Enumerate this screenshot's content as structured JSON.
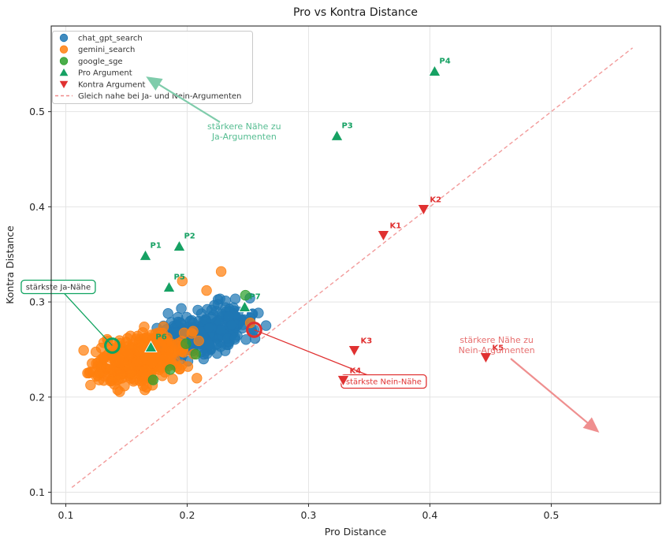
{
  "chart_data": {
    "type": "scatter",
    "title": "Pro vs Kontra Distance",
    "xlabel": "Pro Distance",
    "ylabel": "Kontra Distance",
    "xlim": [
      0.088,
      0.59
    ],
    "ylim": [
      0.088,
      0.59
    ],
    "xticks": [
      0.1,
      0.2,
      0.3,
      0.4,
      0.5
    ],
    "yticks": [
      0.1,
      0.2,
      0.3,
      0.4,
      0.5
    ],
    "grid": true,
    "grid_color": "#e4e4e4",
    "spine_color": "#2a2a2a",
    "identity_line": {
      "label": "Gleich nahe bei Ja- und Nein-Argumenten",
      "from": [
        0.105,
        0.105
      ],
      "to": [
        0.567,
        0.567
      ],
      "style": "dashed",
      "color": "#f29a9a"
    },
    "series": [
      {
        "name": "chat_gpt_search",
        "color": "#1f77b4",
        "kind": "cluster",
        "count": 270,
        "center": [
          0.216,
          0.269
        ],
        "sigma": [
          0.019,
          0.014
        ],
        "rho": 0.45,
        "seed": 7,
        "extra_points": [
          [
            0.2552,
            0.2707
          ],
          [
            0.252,
            0.283
          ],
          [
            0.246,
            0.276
          ]
        ]
      },
      {
        "name": "gemini_search",
        "color": "#ff7f0e",
        "kind": "cluster",
        "count": 390,
        "center": [
          0.161,
          0.24
        ],
        "sigma": [
          0.019,
          0.014
        ],
        "rho": 0.35,
        "seed": 21,
        "extra_points": [
          [
            0.1383,
            0.2541
          ],
          [
            0.228,
            0.332
          ],
          [
            0.216,
            0.312
          ],
          [
            0.196,
            0.322
          ],
          [
            0.252,
            0.278
          ]
        ]
      },
      {
        "name": "google_sge",
        "color": "#2ca02c",
        "kind": "points",
        "points": [
          [
            0.248,
            0.307
          ],
          [
            0.199,
            0.256
          ],
          [
            0.186,
            0.229
          ],
          [
            0.207,
            0.245
          ],
          [
            0.172,
            0.218
          ]
        ]
      }
    ],
    "pro_arguments": {
      "legend_label": "Pro Argument",
      "color": "#16a163",
      "points": [
        {
          "id": "P1",
          "x": 0.1656,
          "y": 0.3486
        },
        {
          "id": "P2",
          "x": 0.1935,
          "y": 0.3585
        },
        {
          "id": "P3",
          "x": 0.3234,
          "y": 0.4745
        },
        {
          "id": "P4",
          "x": 0.4039,
          "y": 0.5424
        },
        {
          "id": "P5",
          "x": 0.1851,
          "y": 0.3154
        },
        {
          "id": "P6",
          "x": 0.1701,
          "y": 0.2524
        },
        {
          "id": "P7",
          "x": 0.2474,
          "y": 0.2947
        }
      ]
    },
    "kontra_arguments": {
      "legend_label": "Kontra Argument",
      "color": "#e03131",
      "points": [
        {
          "id": "K1",
          "x": 0.3617,
          "y": 0.3701
        },
        {
          "id": "K2",
          "x": 0.3948,
          "y": 0.3974
        },
        {
          "id": "K3",
          "x": 0.3377,
          "y": 0.2491
        },
        {
          "id": "K4",
          "x": 0.3286,
          "y": 0.2177
        },
        {
          "id": "K5",
          "x": 0.4461,
          "y": 0.2417
        }
      ]
    },
    "highlights": [
      {
        "label": "stärkste Ja-Nähe",
        "ring_color": "#0fa35f",
        "text_color": "#333333",
        "point": [
          0.1383,
          0.2541
        ],
        "box_center": [
          0.0938,
          0.3158
        ],
        "box_size": [
          94,
          17
        ]
      },
      {
        "label": "stärkste Nein-Nähe",
        "ring_color": "#e03131",
        "text_color": "#e03131",
        "point": [
          0.2552,
          0.2707
        ],
        "box_center": [
          0.362,
          0.2164
        ],
        "box_size": [
          108,
          17
        ]
      }
    ],
    "annotations": [
      {
        "id": "ja",
        "text_lines": [
          "stärkere Nähe zu",
          "Ja-Argumenten"
        ],
        "text_color": "#56bd92",
        "arrow_color": "#7fccab",
        "text_center": [
          0.247,
          0.48
        ],
        "arrow_from": [
          0.227,
          0.489
        ],
        "arrow_to": [
          0.1685,
          0.535
        ]
      },
      {
        "id": "nein",
        "text_lines": [
          "stärkere Nähe zu",
          "Nein-Argumenten"
        ],
        "text_color": "#e76f6f",
        "arrow_color": "#ef8f8f",
        "text_center": [
          0.455,
          0.2553
        ],
        "arrow_from": [
          0.4666,
          0.2404
        ],
        "arrow_to": [
          0.5374,
          0.165
        ]
      }
    ],
    "legend": {
      "border_color": "#c9c9c9",
      "items": [
        {
          "label": "chat_gpt_search",
          "marker": "circle",
          "color": "#1f77b4"
        },
        {
          "label": "gemini_search",
          "marker": "circle",
          "color": "#ff7f0e"
        },
        {
          "label": "google_sge",
          "marker": "circle",
          "color": "#2ca02c"
        },
        {
          "label": "Pro Argument",
          "marker": "triangle-up",
          "color": "#16a163"
        },
        {
          "label": "Kontra Argument",
          "marker": "triangle-down",
          "color": "#e03131"
        },
        {
          "label": "Gleich nahe bei Ja- und Nein-Argumenten",
          "marker": "dashed-line",
          "color": "#f08a8a"
        }
      ]
    }
  }
}
